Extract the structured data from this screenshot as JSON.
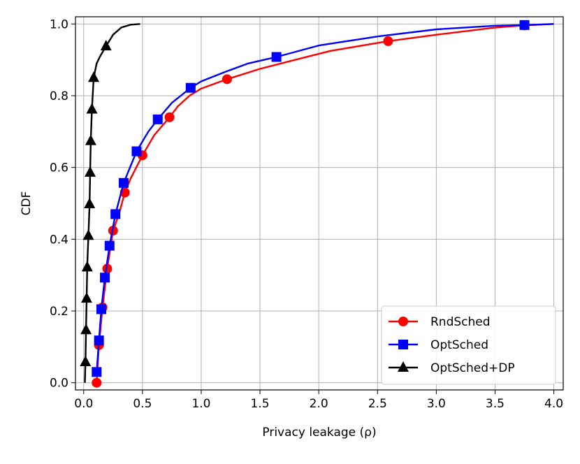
{
  "chart_data": {
    "type": "line",
    "xlabel": "Privacy leakage (ρ)",
    "ylabel": "CDF",
    "xlim": [
      -0.07,
      4.08
    ],
    "ylim": [
      -0.02,
      1.02
    ],
    "x_ticks": [
      "0.0",
      "0.5",
      "1.0",
      "1.5",
      "2.0",
      "2.5",
      "3.0",
      "3.5",
      "4.0"
    ],
    "y_ticks": [
      "0.0",
      "0.2",
      "0.4",
      "0.6",
      "0.8",
      "1.0"
    ],
    "grid": true,
    "legend_position": "lower-right",
    "series": [
      {
        "name": "RndSched",
        "color": "#ff0000",
        "marker": "circle",
        "x": [
          0.11,
          0.13,
          0.16,
          0.2,
          0.25,
          0.3,
          0.35,
          0.4,
          0.5,
          0.6,
          0.73,
          0.8,
          0.9,
          1.0,
          1.22,
          1.5,
          1.8,
          2.1,
          2.59,
          3.0,
          3.5,
          3.75,
          4.0
        ],
        "y": [
          0.0,
          0.105,
          0.21,
          0.318,
          0.424,
          0.47,
          0.53,
          0.57,
          0.634,
          0.69,
          0.74,
          0.77,
          0.8,
          0.82,
          0.846,
          0.875,
          0.9,
          0.925,
          0.952,
          0.97,
          0.99,
          0.996,
          1.0
        ],
        "marker_indices": [
          0,
          1,
          2,
          3,
          4,
          6,
          8,
          10,
          14,
          18,
          21
        ]
      },
      {
        "name": "OptSched",
        "color": "#0000ff",
        "marker": "square",
        "x": [
          0.11,
          0.13,
          0.15,
          0.18,
          0.22,
          0.27,
          0.34,
          0.45,
          0.55,
          0.63,
          0.75,
          0.91,
          1.0,
          1.2,
          1.4,
          1.64,
          2.0,
          2.5,
          3.0,
          3.5,
          3.75,
          4.0
        ],
        "y": [
          0.03,
          0.118,
          0.205,
          0.293,
          0.382,
          0.47,
          0.557,
          0.645,
          0.7,
          0.734,
          0.78,
          0.822,
          0.84,
          0.866,
          0.89,
          0.908,
          0.94,
          0.965,
          0.985,
          0.995,
          0.997,
          1.0
        ],
        "marker_indices": [
          0,
          1,
          2,
          3,
          4,
          5,
          6,
          7,
          9,
          11,
          15,
          20
        ]
      },
      {
        "name": "OptSched+DP",
        "color": "#000000",
        "marker": "triangle",
        "x": [
          0.01,
          0.015,
          0.02,
          0.025,
          0.03,
          0.04,
          0.05,
          0.055,
          0.06,
          0.07,
          0.085,
          0.11,
          0.14,
          0.19,
          0.25,
          0.32,
          0.4,
          0.48
        ],
        "y": [
          0.0,
          0.058,
          0.147,
          0.235,
          0.322,
          0.41,
          0.498,
          0.586,
          0.674,
          0.762,
          0.85,
          0.89,
          0.91,
          0.938,
          0.97,
          0.99,
          0.998,
          1.0
        ],
        "marker_indices": [
          1,
          2,
          3,
          4,
          5,
          6,
          7,
          8,
          9,
          10,
          13
        ]
      }
    ]
  }
}
